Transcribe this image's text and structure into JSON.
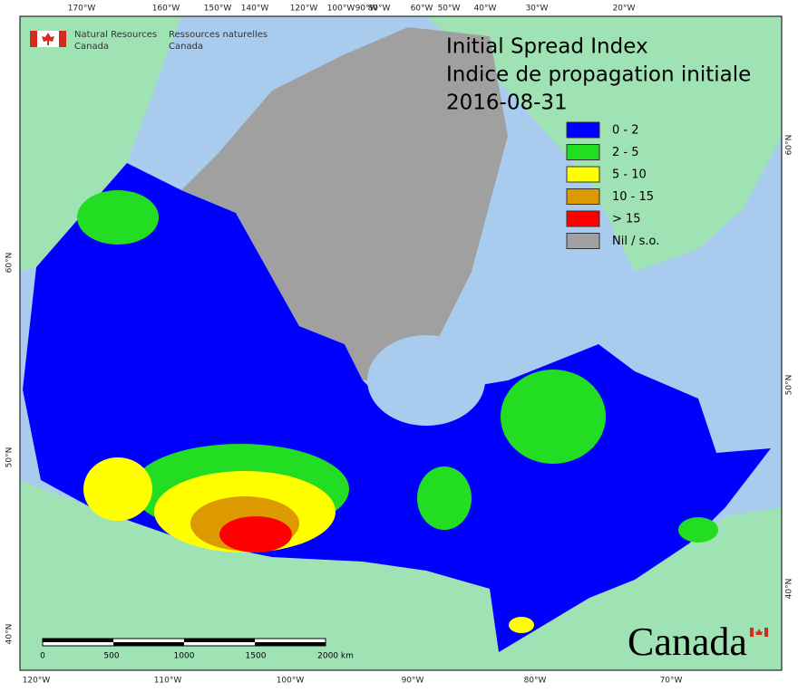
{
  "header": {
    "org_en": [
      "Natural Resources",
      "Canada"
    ],
    "org_fr": [
      "Ressources naturelles",
      "Canada"
    ]
  },
  "title": [
    "Initial Spread Index",
    "Indice de propagation initiale",
    "2016-08-31"
  ],
  "legend": [
    {
      "label": "0 - 2",
      "color": "#0000ff"
    },
    {
      "label": "2 - 5",
      "color": "#22dd22"
    },
    {
      "label": "5 - 10",
      "color": "#ffff00"
    },
    {
      "label": "10 - 15",
      "color": "#dd9900"
    },
    {
      "label": "> 15",
      "color": "#ff0000"
    },
    {
      "label": "Nil / s.o.",
      "color": "#a0a0a0"
    }
  ],
  "graticule": {
    "top": [
      "170°W",
      "160°W",
      "150°W",
      "140°W",
      "120°W",
      "100°W",
      "90°W",
      "80°W",
      "60°W",
      "50°W",
      "40°W",
      "30°W",
      "20°W"
    ],
    "bottom": [
      "120°W",
      "110°W",
      "100°W",
      "90°W",
      "80°W",
      "70°W"
    ],
    "left": [
      "60°N",
      "50°N",
      "40°N"
    ],
    "right": [
      "60°N",
      "50°N",
      "40°N"
    ]
  },
  "scale_bar": {
    "labels": [
      "0",
      "500",
      "1000",
      "1500",
      "2000 km"
    ]
  },
  "wordmark": "Canada"
}
